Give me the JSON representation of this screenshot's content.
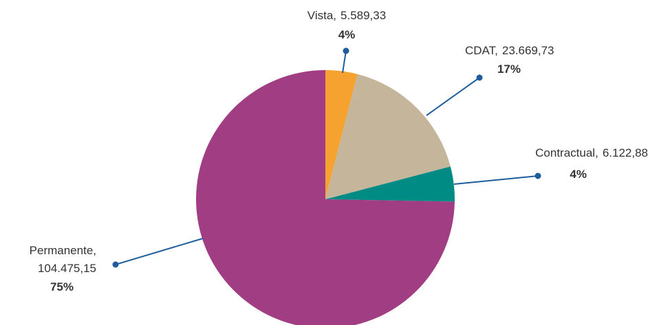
{
  "chart_data": {
    "type": "pie",
    "categories": [
      "Vista,",
      "CDAT,",
      "Contractual,",
      "Permanente,"
    ],
    "values": [
      5589.33,
      23669.73,
      6122.88,
      104475.15
    ],
    "value_labels": [
      "5.589,33",
      "23.669,73",
      "6.122,88",
      "104.475,15"
    ],
    "percent_labels": [
      "4%",
      "17%",
      "4%",
      "75%"
    ],
    "colors": [
      "#f5a230",
      "#c4b59b",
      "#008b85",
      "#a03d83"
    ],
    "leader_color": "#1f5c9c"
  }
}
